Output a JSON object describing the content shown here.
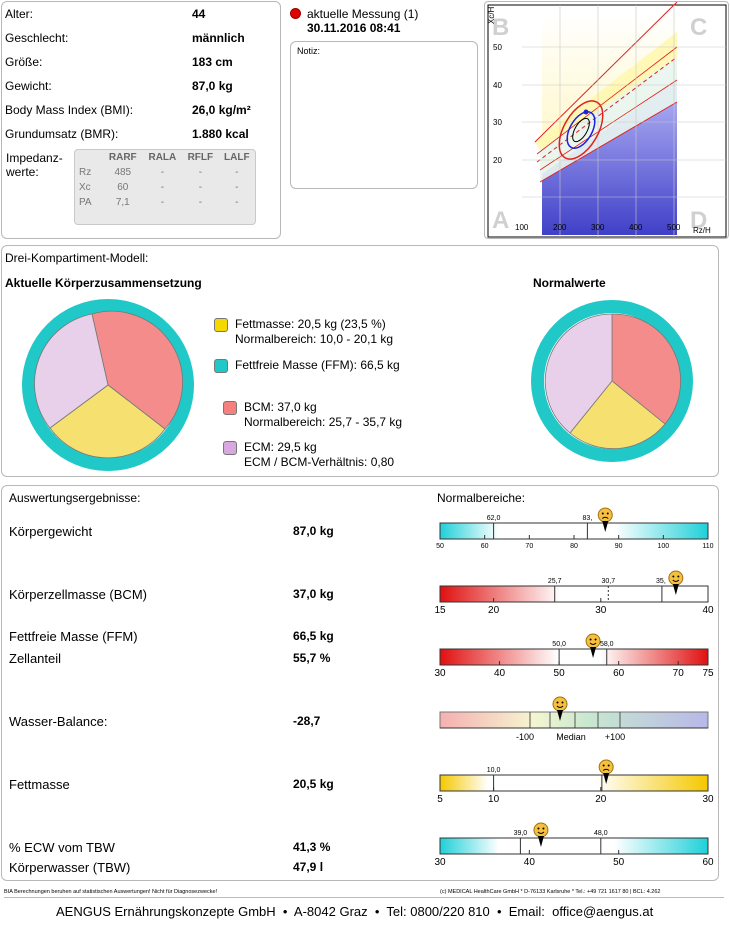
{
  "patient": {
    "rows": [
      {
        "label": "Alter:",
        "value": "44"
      },
      {
        "label": "Geschlecht:",
        "value": "männlich"
      },
      {
        "label": "Größe:",
        "value": "183 cm"
      },
      {
        "label": "Gewicht:",
        "value": "87,0 kg"
      },
      {
        "label": "Body Mass Index (BMI):",
        "value": "26,0 kg/m²"
      },
      {
        "label": "Grundumsatz (BMR):",
        "value": "1.880 kcal"
      }
    ],
    "impedance_label_1": "Impedanz-",
    "impedance_label_2": "werte:",
    "impedance_headers": [
      "RARF",
      "RALA",
      "RFLF",
      "LALF"
    ],
    "impedance_rows": [
      {
        "name": "Rz",
        "vals": [
          "485",
          "-",
          "-",
          "-"
        ]
      },
      {
        "name": "Xc",
        "vals": [
          "60",
          "-",
          "-",
          "-"
        ]
      },
      {
        "name": "PA",
        "vals": [
          "7,1",
          "-",
          "-",
          "-"
        ]
      }
    ]
  },
  "measurement": {
    "label": "aktuelle Messung (1)",
    "datetime": "30.11.2016 08:41",
    "notiz_label": "Notiz:",
    "marker_color": "#e00000"
  },
  "rxc_graph": {
    "quadrant_labels": [
      "B",
      "C",
      "A",
      "D"
    ],
    "y_axis_label": "Xc/H",
    "x_axis_label": "Rz/H",
    "y_ticks": [
      "20",
      "30",
      "40",
      "50"
    ],
    "x_ticks": [
      "100",
      "200",
      "300",
      "400",
      "500"
    ]
  },
  "three_compartment": {
    "section_title": "Drei-Kompartiment-Modell:",
    "current_title": "Aktuelle Körperzusammensetzung",
    "normal_title": "Normalwerte",
    "legend": [
      {
        "color": "#f5d800",
        "line1": "Fettmasse: 20,5 kg (23,5 %)",
        "line2": "Normalbereich: 10,0 - 20,1 kg"
      },
      {
        "color": "#20c8c8",
        "line1": "Fettfreie Masse (FFM): 66,5 kg",
        "line2": ""
      },
      {
        "color": "#f48080",
        "line1": "BCM: 37,0 kg",
        "line2": "Normalbereich: 25,7 - 35,7 kg"
      },
      {
        "color": "#d8a8e0",
        "line1": "ECM: 29,5 kg",
        "line2": "ECM / BCM-Verhältnis: 0,80"
      }
    ]
  },
  "results": {
    "title": "Auswertungsergebnisse:",
    "normal_title": "Normalbereiche:",
    "rows": [
      {
        "label": "Körpergewicht",
        "value": "87,0 kg"
      },
      {
        "label": "Körperzellmasse (BCM)",
        "value": "37,0 kg"
      },
      {
        "label": "Fettfreie Masse (FFM)",
        "value": "66,5 kg"
      },
      {
        "label": "Zellanteil",
        "value": "55,7 %"
      },
      {
        "label": "Wasser-Balance:",
        "value": "-28,7"
      },
      {
        "label": "Fettmasse",
        "value": "20,5 kg"
      },
      {
        "label": "% ECW vom TBW",
        "value": "41,3 %"
      },
      {
        "label": "Körperwasser (TBW)",
        "value": "47,9 l"
      }
    ],
    "scales": [
      {
        "name": "weight",
        "ticks": [
          "50",
          "60",
          "70",
          "80",
          "90",
          "100",
          "110"
        ],
        "range_low": "62,0",
        "range_high": "83,",
        "marker": 87.0,
        "min": 50,
        "max": 110
      },
      {
        "name": "bcm",
        "ticks": [
          "15",
          "20",
          "30",
          "40"
        ],
        "range_low": "25,7",
        "range_high": "30,7",
        "range_high2": "35,",
        "marker": 37.0,
        "min": 15,
        "max": 40
      },
      {
        "name": "zellanteil",
        "ticks": [
          "30",
          "40",
          "50",
          "60",
          "70",
          "75"
        ],
        "range_low": "50,0",
        "range_high": "58,0",
        "marker": 55.7,
        "min": 30,
        "max": 75
      },
      {
        "name": "wasser",
        "ticks": [
          "-100",
          "Median",
          "+100"
        ],
        "marker": -28.7
      },
      {
        "name": "fett",
        "ticks": [
          "5",
          "10",
          "20",
          "30"
        ],
        "range_low": "10,0",
        "range_high": "1",
        "marker": 20.5,
        "min": 5,
        "max": 30
      },
      {
        "name": "ecw",
        "ticks": [
          "30",
          "40",
          "50",
          "60"
        ],
        "range_low": "39,0",
        "range_high": "48,0",
        "marker": 41.3,
        "min": 30,
        "max": 60
      }
    ]
  },
  "footer": {
    "disclaimer": "BIA Berechnungen beruhen auf statistischen Auswertungen! Nicht für Diagnosezwecke!",
    "copyright": "(c) MEDICAL HealthCare GmbH * D-76133 Karlsruhe * Tel.: +49 721 1617 80 | BCL: 4.262",
    "company": "AENGUS Ernährungskonzepte GmbH  •  A-8042 Graz  •  Tel: 0800/220 810  •  Email:  office@aengus.at"
  }
}
